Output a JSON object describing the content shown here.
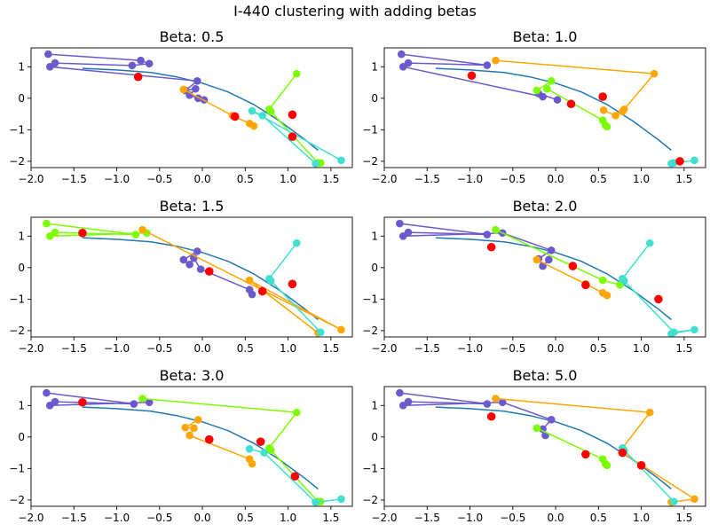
{
  "figure": {
    "suptitle": "I-440 clustering with adding betas",
    "colors": {
      "curve": "#1f77b4",
      "purple": "#6a5acd",
      "orange": "#ffa500",
      "lime": "#7cfc00",
      "cyan": "#40e0d0",
      "centroid": "#ff0000"
    }
  },
  "chart_data": [
    {
      "type": "scatter",
      "title": "Beta: 0.5",
      "xlim": [
        -2.0,
        1.75
      ],
      "ylim": [
        -2.2,
        1.6
      ],
      "xticks": [
        -2.0,
        -1.5,
        -1.0,
        -0.5,
        0.0,
        0.5,
        1.0,
        1.5
      ],
      "yticks": [
        -2,
        -1,
        0,
        1
      ],
      "reference_curve": [
        [
          -1.4,
          0.95
        ],
        [
          -1.0,
          0.9
        ],
        [
          -0.6,
          0.82
        ],
        [
          -0.3,
          0.68
        ],
        [
          0.0,
          0.48
        ],
        [
          0.3,
          0.2
        ],
        [
          0.6,
          -0.2
        ],
        [
          0.9,
          -0.72
        ],
        [
          1.2,
          -1.32
        ],
        [
          1.35,
          -1.65
        ]
      ],
      "series": [
        {
          "color": "purple",
          "points": [
            [
              -1.8,
              1.4
            ],
            [
              -0.72,
              1.2
            ],
            [
              -0.62,
              1.1
            ],
            [
              -0.82,
              1.04
            ],
            [
              -1.72,
              1.12
            ],
            [
              -1.78,
              1.0
            ],
            [
              -0.06,
              0.55
            ],
            [
              -0.2,
              0.25
            ],
            [
              -0.08,
              0.3
            ],
            [
              -0.15,
              0.1
            ],
            [
              -0.05,
              0.0
            ],
            [
              0.02,
              -0.05
            ]
          ]
        },
        {
          "color": "orange",
          "points": [
            [
              -0.22,
              0.28
            ],
            [
              0.35,
              -0.55
            ],
            [
              0.55,
              -0.8
            ],
            [
              0.6,
              -0.88
            ]
          ]
        },
        {
          "color": "lime",
          "points": [
            [
              1.1,
              0.78
            ],
            [
              0.78,
              -0.35
            ],
            [
              0.8,
              -0.42
            ],
            [
              1.35,
              -2.05
            ],
            [
              1.38,
              -2.05
            ]
          ]
        },
        {
          "color": "cyan",
          "points": [
            [
              1.62,
              -1.97
            ],
            [
              0.58,
              -0.4
            ],
            [
              0.7,
              -0.55
            ],
            [
              1.32,
              -2.07
            ]
          ]
        }
      ],
      "centroids": [
        [
          -0.75,
          0.68
        ],
        [
          0.38,
          -0.58
        ],
        [
          1.05,
          -0.52
        ],
        [
          1.05,
          -1.22
        ]
      ]
    },
    {
      "type": "scatter",
      "title": "Beta: 1.0",
      "xlim": [
        -2.0,
        1.75
      ],
      "ylim": [
        -2.2,
        1.6
      ],
      "xticks": [
        -2.0,
        -1.5,
        -1.0,
        -0.5,
        0.0,
        0.5,
        1.0,
        1.5
      ],
      "yticks": [
        -2,
        -1,
        0,
        1
      ],
      "reference_curve": [
        [
          -1.4,
          0.95
        ],
        [
          -1.0,
          0.9
        ],
        [
          -0.6,
          0.82
        ],
        [
          -0.3,
          0.68
        ],
        [
          0.0,
          0.48
        ],
        [
          0.3,
          0.2
        ],
        [
          0.6,
          -0.2
        ],
        [
          0.9,
          -0.72
        ],
        [
          1.2,
          -1.32
        ],
        [
          1.35,
          -1.65
        ]
      ],
      "series": [
        {
          "color": "purple",
          "points": [
            [
              -1.8,
              1.4
            ],
            [
              -0.8,
              1.05
            ],
            [
              -1.72,
              1.12
            ],
            [
              -1.78,
              1.0
            ],
            [
              -0.15,
              0.05
            ],
            [
              -0.2,
              0.15
            ],
            [
              0.02,
              -0.05
            ]
          ]
        },
        {
          "color": "orange",
          "points": [
            [
              -0.7,
              1.2
            ],
            [
              1.15,
              0.78
            ],
            [
              0.8,
              -0.35
            ],
            [
              0.78,
              -0.42
            ],
            [
              0.7,
              -0.55
            ],
            [
              0.56,
              -0.38
            ]
          ]
        },
        {
          "color": "lime",
          "points": [
            [
              -0.22,
              0.25
            ],
            [
              -0.05,
              0.55
            ],
            [
              -0.1,
              0.3
            ],
            [
              0.55,
              -0.7
            ],
            [
              0.58,
              -0.85
            ],
            [
              0.6,
              -0.9
            ]
          ]
        },
        {
          "color": "cyan",
          "points": [
            [
              1.62,
              -1.97
            ],
            [
              1.35,
              -2.07
            ],
            [
              1.38,
              -2.05
            ]
          ]
        }
      ],
      "centroids": [
        [
          -0.98,
          0.72
        ],
        [
          0.55,
          0.05
        ],
        [
          0.18,
          -0.18
        ],
        [
          1.45,
          -2.0
        ]
      ]
    },
    {
      "type": "scatter",
      "title": "Beta: 1.5",
      "xlim": [
        -2.0,
        1.75
      ],
      "ylim": [
        -2.2,
        1.6
      ],
      "xticks": [
        -2.0,
        -1.5,
        -1.0,
        -0.5,
        0.0,
        0.5,
        1.0,
        1.5
      ],
      "yticks": [
        -2,
        -1,
        0,
        1
      ],
      "reference_curve": [
        [
          -1.4,
          0.95
        ],
        [
          -1.0,
          0.9
        ],
        [
          -0.6,
          0.82
        ],
        [
          -0.3,
          0.68
        ],
        [
          0.0,
          0.48
        ],
        [
          0.3,
          0.2
        ],
        [
          0.6,
          -0.2
        ],
        [
          0.9,
          -0.72
        ],
        [
          1.2,
          -1.32
        ],
        [
          1.35,
          -1.65
        ]
      ],
      "series": [
        {
          "color": "lime",
          "points": [
            [
              -1.82,
              1.4
            ],
            [
              -0.78,
              1.05
            ],
            [
              -1.72,
              1.12
            ],
            [
              -1.78,
              1.0
            ],
            [
              -0.65,
              1.1
            ]
          ]
        },
        {
          "color": "purple",
          "points": [
            [
              -0.06,
              0.52
            ],
            [
              -0.22,
              0.25
            ],
            [
              -0.15,
              0.1
            ],
            [
              -0.1,
              0.3
            ],
            [
              -0.02,
              -0.05
            ],
            [
              0.55,
              -0.7
            ],
            [
              0.58,
              -0.85
            ]
          ]
        },
        {
          "color": "orange",
          "points": [
            [
              -0.7,
              1.2
            ],
            [
              1.62,
              -1.97
            ],
            [
              0.55,
              -0.4
            ],
            [
              1.35,
              -2.07
            ]
          ]
        },
        {
          "color": "cyan",
          "points": [
            [
              1.1,
              0.78
            ],
            [
              0.78,
              -0.35
            ],
            [
              0.8,
              -0.42
            ],
            [
              1.38,
              -2.05
            ]
          ]
        }
      ],
      "centroids": [
        [
          -1.4,
          1.1
        ],
        [
          0.08,
          -0.12
        ],
        [
          0.7,
          -0.75
        ],
        [
          1.05,
          -0.52
        ]
      ]
    },
    {
      "type": "scatter",
      "title": "Beta: 2.0",
      "xlim": [
        -2.0,
        1.75
      ],
      "ylim": [
        -2.2,
        1.6
      ],
      "xticks": [
        -2.0,
        -1.5,
        -1.0,
        -0.5,
        0.0,
        0.5,
        1.0,
        1.5
      ],
      "yticks": [
        -2,
        -1,
        0,
        1
      ],
      "reference_curve": [
        [
          -1.4,
          0.95
        ],
        [
          -1.0,
          0.9
        ],
        [
          -0.6,
          0.82
        ],
        [
          -0.3,
          0.68
        ],
        [
          0.0,
          0.48
        ],
        [
          0.3,
          0.2
        ],
        [
          0.6,
          -0.2
        ],
        [
          0.9,
          -0.72
        ],
        [
          1.2,
          -1.32
        ],
        [
          1.35,
          -1.65
        ]
      ],
      "series": [
        {
          "color": "purple",
          "points": [
            [
              -1.82,
              1.4
            ],
            [
              -0.8,
              1.05
            ],
            [
              -1.72,
              1.12
            ],
            [
              -1.78,
              1.0
            ],
            [
              -0.62,
              1.1
            ],
            [
              -0.05,
              0.55
            ],
            [
              -0.2,
              0.28
            ],
            [
              -0.15,
              0.05
            ],
            [
              -0.08,
              0.25
            ]
          ]
        },
        {
          "color": "lime",
          "points": [
            [
              -0.7,
              1.2
            ],
            [
              0.55,
              -0.4
            ],
            [
              0.75,
              -0.55
            ]
          ]
        },
        {
          "color": "orange",
          "points": [
            [
              -0.22,
              0.25
            ],
            [
              0.35,
              -0.52
            ],
            [
              0.55,
              -0.8
            ],
            [
              0.6,
              -0.88
            ]
          ]
        },
        {
          "color": "cyan",
          "points": [
            [
              1.1,
              0.78
            ],
            [
              0.78,
              -0.35
            ],
            [
              0.8,
              -0.42
            ],
            [
              1.38,
              -2.05
            ],
            [
              1.62,
              -1.97
            ],
            [
              1.35,
              -2.1
            ]
          ]
        }
      ],
      "centroids": [
        [
          -0.75,
          0.65
        ],
        [
          0.2,
          0.05
        ],
        [
          0.35,
          -0.55
        ],
        [
          1.2,
          -1.0
        ]
      ]
    },
    {
      "type": "scatter",
      "title": "Beta: 3.0",
      "xlim": [
        -2.0,
        1.75
      ],
      "ylim": [
        -2.2,
        1.6
      ],
      "xticks": [
        -2.0,
        -1.5,
        -1.0,
        -0.5,
        0.0,
        0.5,
        1.0,
        1.5
      ],
      "yticks": [
        -2,
        -1,
        0,
        1
      ],
      "reference_curve": [
        [
          -1.4,
          0.95
        ],
        [
          -1.0,
          0.9
        ],
        [
          -0.6,
          0.82
        ],
        [
          -0.3,
          0.68
        ],
        [
          0.0,
          0.48
        ],
        [
          0.3,
          0.2
        ],
        [
          0.6,
          -0.2
        ],
        [
          0.9,
          -0.72
        ],
        [
          1.2,
          -1.32
        ],
        [
          1.35,
          -1.65
        ]
      ],
      "series": [
        {
          "color": "purple",
          "points": [
            [
              -1.82,
              1.4
            ],
            [
              -0.8,
              1.05
            ],
            [
              -1.72,
              1.12
            ],
            [
              -1.78,
              1.0
            ],
            [
              -0.62,
              1.1
            ]
          ]
        },
        {
          "color": "lime",
          "points": [
            [
              -0.7,
              1.22
            ],
            [
              1.1,
              0.78
            ],
            [
              0.78,
              -0.35
            ],
            [
              0.8,
              -0.42
            ],
            [
              1.35,
              -2.05
            ],
            [
              1.38,
              -2.05
            ]
          ]
        },
        {
          "color": "orange",
          "points": [
            [
              -0.05,
              0.55
            ],
            [
              -0.2,
              0.3
            ],
            [
              -0.1,
              0.28
            ],
            [
              -0.15,
              0.05
            ],
            [
              0.55,
              -0.7
            ],
            [
              0.58,
              -0.85
            ]
          ]
        },
        {
          "color": "cyan",
          "points": [
            [
              0.55,
              -0.38
            ],
            [
              0.72,
              -0.5
            ],
            [
              1.32,
              -2.07
            ],
            [
              1.62,
              -1.97
            ]
          ]
        }
      ],
      "centroids": [
        [
          -1.4,
          1.1
        ],
        [
          0.08,
          -0.08
        ],
        [
          0.68,
          -0.15
        ],
        [
          1.08,
          -1.25
        ]
      ]
    },
    {
      "type": "scatter",
      "title": "Beta: 5.0",
      "xlim": [
        -2.0,
        1.75
      ],
      "ylim": [
        -2.2,
        1.6
      ],
      "xticks": [
        -2.0,
        -1.5,
        -1.0,
        -0.5,
        0.0,
        0.5,
        1.0,
        1.5
      ],
      "yticks": [
        -2,
        -1,
        0,
        1
      ],
      "reference_curve": [
        [
          -1.4,
          0.95
        ],
        [
          -1.0,
          0.9
        ],
        [
          -0.6,
          0.82
        ],
        [
          -0.3,
          0.68
        ],
        [
          0.0,
          0.48
        ],
        [
          0.3,
          0.2
        ],
        [
          0.6,
          -0.2
        ],
        [
          0.9,
          -0.72
        ],
        [
          1.2,
          -1.32
        ],
        [
          1.35,
          -1.65
        ]
      ],
      "series": [
        {
          "color": "purple",
          "points": [
            [
              -1.82,
              1.4
            ],
            [
              -0.8,
              1.05
            ],
            [
              -1.72,
              1.12
            ],
            [
              -1.78,
              1.0
            ],
            [
              -0.62,
              1.1
            ],
            [
              -0.05,
              0.55
            ],
            [
              -0.15,
              0.25
            ],
            [
              -0.12,
              0.05
            ]
          ]
        },
        {
          "color": "orange",
          "points": [
            [
              -0.7,
              1.22
            ],
            [
              1.1,
              0.78
            ],
            [
              0.78,
              -0.35
            ],
            [
              0.78,
              -0.5
            ],
            [
              1.62,
              -1.97
            ],
            [
              1.35,
              -2.07
            ]
          ]
        },
        {
          "color": "lime",
          "points": [
            [
              -0.22,
              0.28
            ],
            [
              0.55,
              -0.7
            ],
            [
              0.58,
              -0.85
            ],
            [
              0.6,
              -0.9
            ]
          ]
        },
        {
          "color": "cyan",
          "points": [
            [
              0.78,
              -0.35
            ],
            [
              0.8,
              -0.42
            ],
            [
              1.38,
              -2.05
            ]
          ]
        }
      ],
      "centroids": [
        [
          -0.75,
          0.65
        ],
        [
          0.35,
          -0.55
        ],
        [
          0.78,
          -0.5
        ],
        [
          1.0,
          -0.9
        ]
      ]
    }
  ]
}
